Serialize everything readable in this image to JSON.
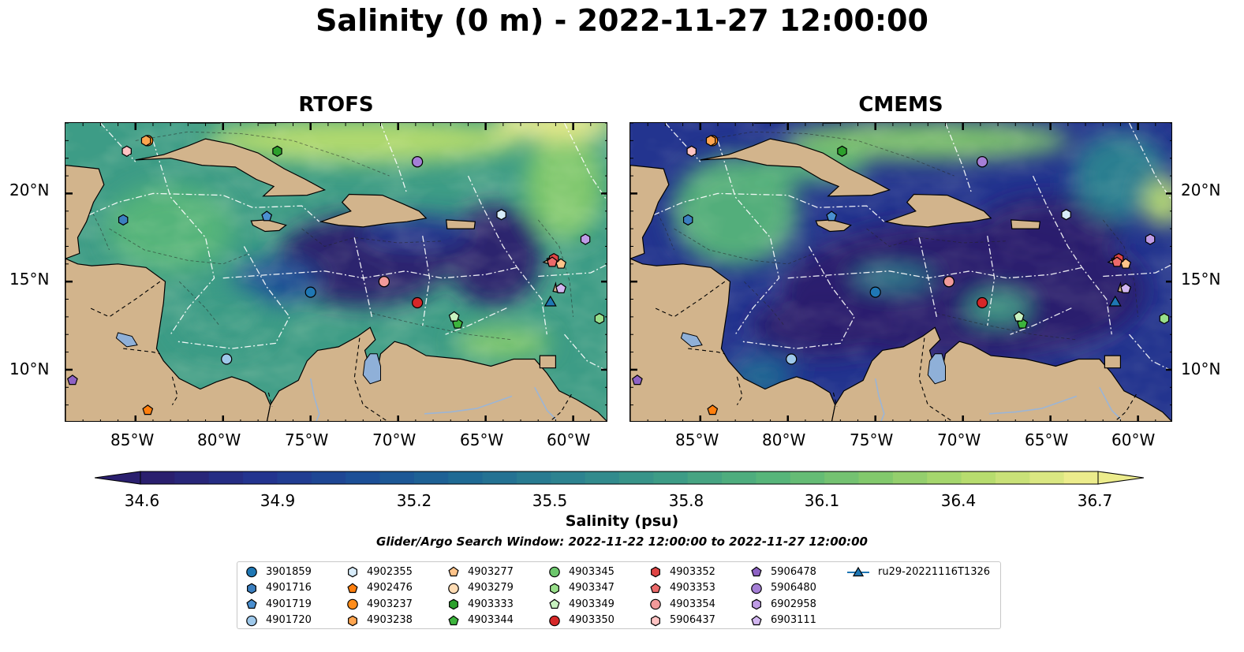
{
  "title": "Salinity (0 m) - 2022-11-27 12:00:00",
  "panels": [
    {
      "title": "RTOFS",
      "variant": "rtofs"
    },
    {
      "title": "CMEMS",
      "variant": "cmems"
    }
  ],
  "axes": {
    "lon_range": [
      -89,
      -58
    ],
    "lat_range": [
      7,
      24
    ],
    "lon_ticks": [
      "85°W",
      "80°W",
      "75°W",
      "70°W",
      "65°W",
      "60°W"
    ],
    "lat_ticks": [
      "20°N",
      "15°N",
      "10°N"
    ]
  },
  "colorbar": {
    "min": 34.6,
    "max": 36.7,
    "ticks": [
      "34.6",
      "34.9",
      "35.2",
      "35.5",
      "35.8",
      "36.1",
      "36.4",
      "36.7"
    ],
    "label": "Salinity (psu)",
    "colors": [
      "#2a1f6e",
      "#23348f",
      "#1c4f97",
      "#1f6a94",
      "#2d8390",
      "#3d9c86",
      "#57b57a",
      "#82c96c",
      "#b7dc6e",
      "#ecec8c"
    ]
  },
  "search_window": "Glider/Argo Search Window: 2022-11-22 12:00:00 to 2022-11-27 12:00:00",
  "colors": {
    "land": "#d2b48c",
    "lake": "#8fb0d8",
    "ocean_low": "#2a1f6e",
    "ocean_high": "#ecec8c"
  },
  "legend": [
    {
      "id": "3901859",
      "marker": "circle",
      "color": "#1f77b4"
    },
    {
      "id": "4901716",
      "marker": "hexagon",
      "color": "#3b7fc0"
    },
    {
      "id": "4901719",
      "marker": "pentagon",
      "color": "#4a8fd0"
    },
    {
      "id": "4901720",
      "marker": "circle",
      "color": "#9ec8ea"
    },
    {
      "id": "4902355",
      "marker": "hexagon",
      "color": "#d8ecfa"
    },
    {
      "id": "4902476",
      "marker": "pentagon",
      "color": "#ff7f0e"
    },
    {
      "id": "4903237",
      "marker": "circle",
      "color": "#ff8c1a"
    },
    {
      "id": "4903238",
      "marker": "hexagon",
      "color": "#ffa54f"
    },
    {
      "id": "4903277",
      "marker": "pentagon",
      "color": "#ffc48a"
    },
    {
      "id": "4903279",
      "marker": "circle",
      "color": "#ffdcb4"
    },
    {
      "id": "4903333",
      "marker": "hexagon",
      "color": "#2ca02c"
    },
    {
      "id": "4903344",
      "marker": "pentagon",
      "color": "#3cb43c"
    },
    {
      "id": "4903345",
      "marker": "circle",
      "color": "#6cc76c"
    },
    {
      "id": "4903347",
      "marker": "hexagon",
      "color": "#98df8a"
    },
    {
      "id": "4903349",
      "marker": "pentagon",
      "color": "#c8f2c0"
    },
    {
      "id": "4903350",
      "marker": "circle",
      "color": "#d62728"
    },
    {
      "id": "4903352",
      "marker": "hexagon",
      "color": "#e04545"
    },
    {
      "id": "4903353",
      "marker": "pentagon",
      "color": "#ec6a6a"
    },
    {
      "id": "4903354",
      "marker": "circle",
      "color": "#f29a9a"
    },
    {
      "id": "5906437",
      "marker": "hexagon",
      "color": "#ffc3c3"
    },
    {
      "id": "5906478",
      "marker": "pentagon",
      "color": "#8e62c4"
    },
    {
      "id": "5906480",
      "marker": "circle",
      "color": "#a57fd6"
    },
    {
      "id": "6902958",
      "marker": "hexagon",
      "color": "#bf9ce6"
    },
    {
      "id": "6903111",
      "marker": "pentagon",
      "color": "#d2b6f0"
    },
    {
      "id": "ru29-20221116T1326",
      "marker": "triangle-line",
      "color": "#1f77b4"
    }
  ],
  "platforms": [
    {
      "id": "3901859",
      "lon": -75.0,
      "lat": 14.4
    },
    {
      "id": "4901716",
      "lon": -85.7,
      "lat": 18.5
    },
    {
      "id": "4901719",
      "lon": -77.5,
      "lat": 18.7
    },
    {
      "id": "4901720",
      "lon": -79.8,
      "lat": 10.6
    },
    {
      "id": "4902355",
      "lon": -64.1,
      "lat": 18.8
    },
    {
      "id": "4902476",
      "lon": -84.3,
      "lat": 7.7
    },
    {
      "id": "4903237",
      "lon": -84.3,
      "lat": 23.0
    },
    {
      "id": "4903238",
      "lon": -84.4,
      "lat": 23.0
    },
    {
      "id": "4903277",
      "lon": -60.7,
      "lat": 16.0
    },
    {
      "id": "4903279",
      "lon": -70.8,
      "lat": 15.0
    },
    {
      "id": "4903333",
      "lon": -76.9,
      "lat": 22.4
    },
    {
      "id": "4903344",
      "lon": -66.6,
      "lat": 12.6
    },
    {
      "id": "4903345",
      "lon": -68.9,
      "lat": 21.8
    },
    {
      "id": "4903347",
      "lon": -58.5,
      "lat": 12.9
    },
    {
      "id": "4903349",
      "lon": -66.8,
      "lat": 13.0
    },
    {
      "id": "4903350",
      "lon": -68.9,
      "lat": 13.8
    },
    {
      "id": "4903352",
      "lon": -61.1,
      "lat": 16.3
    },
    {
      "id": "4903353",
      "lon": -61.2,
      "lat": 16.1
    },
    {
      "id": "4903354",
      "lon": -70.8,
      "lat": 15.0
    },
    {
      "id": "5906437",
      "lon": -85.5,
      "lat": 22.4
    },
    {
      "id": "5906478",
      "lon": -88.6,
      "lat": 9.4
    },
    {
      "id": "5906480",
      "lon": -68.9,
      "lat": 21.8
    },
    {
      "id": "6902958",
      "lon": -59.3,
      "lat": 17.4
    },
    {
      "id": "6903111",
      "lon": -60.7,
      "lat": 14.6
    },
    {
      "id": "ru29-20221116T1326",
      "lon": -61.3,
      "lat": 13.8
    }
  ]
}
